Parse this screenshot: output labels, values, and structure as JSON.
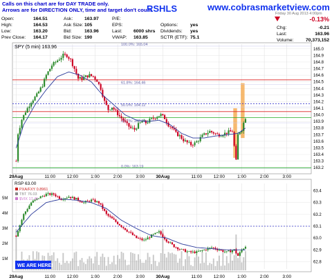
{
  "banner": {
    "ticker_partial": "RSHLS",
    "site": "www.cobrasmarketview.com",
    "note_line1": "Calls on this chart are for DAY TRADE only.",
    "note_line2": "Arrows are for DIRECTION ONLY, time and target don't count."
  },
  "quote": {
    "rows": [
      [
        {
          "label": "Open:",
          "value": "164.51"
        },
        {
          "label": "Ask:",
          "value": "163.97"
        },
        {
          "label": "P/E:",
          "value": ""
        }
      ],
      [
        {
          "label": "High:",
          "value": "164.53"
        },
        {
          "label": "Ask Size:",
          "value": "105"
        },
        {
          "label": "EPS:",
          "value": ""
        },
        {
          "label": "Options:",
          "value": "yes"
        }
      ],
      [
        {
          "label": "Low:",
          "value": "163.20"
        },
        {
          "label": "Bid:",
          "value": "163.96"
        },
        {
          "label": "Last:",
          "value": "6000 shrs"
        },
        {
          "label": "Dividends:",
          "value": "yes"
        }
      ],
      [
        {
          "label": "Prev Close:",
          "value": "164.17"
        },
        {
          "label": "Bid Size:",
          "value": "190"
        },
        {
          "label": "VWAP:",
          "value": "163.85"
        },
        {
          "label": "SCTR (ETF):",
          "value": "75.1"
        }
      ]
    ],
    "change_pct": "-0.13%",
    "chg_label": "Chg:",
    "chg_value": "-0.21",
    "last_label": "Last:",
    "last_value": "163.96",
    "volume_label": "Volume:",
    "volume_value": "70,373,152",
    "header_date": "Friday 30 Aug 2013 4:00pm"
  },
  "colors": {
    "up": "#2c8a2c",
    "down": "#cc0022",
    "ma": "#2a3a9a",
    "box": "#f4a340",
    "red_line": "#dd2222",
    "green_line": "#22aa22",
    "blue_dash": "#3333cc",
    "volume": "#9a9a9a",
    "banner_blue": "#1133ee",
    "note_blue": "#0000cc"
  },
  "chart_data": [
    {
      "type": "candlestick",
      "title": "SPY (5 min) 163.96",
      "y_ticks": [
        163.2,
        163.3,
        163.4,
        163.5,
        163.6,
        163.7,
        163.8,
        163.9,
        164.0,
        164.1,
        164.2,
        164.3,
        164.4,
        164.5,
        164.6,
        164.7,
        164.8,
        164.9,
        165.0
      ],
      "ylim": [
        163.15,
        165.05
      ],
      "x_ticks": [
        "29Aug",
        "11:00",
        "12:00",
        "1:00",
        "2:00",
        "3:00",
        "30Aug",
        "11:00",
        "12:00",
        "1:00",
        "2:00",
        "3:00"
      ],
      "x_tick_bars": [
        0,
        18,
        30,
        42,
        54,
        66,
        78,
        96,
        108,
        120,
        132,
        144
      ],
      "bar_count": 156,
      "close_path": [
        [
          0,
          163.3
        ],
        [
          1,
          163.72
        ],
        [
          3,
          163.93
        ],
        [
          5,
          164.05
        ],
        [
          8,
          164.2
        ],
        [
          11,
          164.3
        ],
        [
          14,
          164.45
        ],
        [
          16,
          164.6
        ],
        [
          19,
          164.75
        ],
        [
          21,
          164.8
        ],
        [
          23,
          164.85
        ],
        [
          25,
          164.9
        ],
        [
          27,
          164.9
        ],
        [
          29,
          164.83
        ],
        [
          31,
          164.7
        ],
        [
          33,
          164.55
        ],
        [
          35,
          164.55
        ],
        [
          37,
          164.58
        ],
        [
          39,
          164.6
        ],
        [
          41,
          164.58
        ],
        [
          43,
          164.52
        ],
        [
          45,
          164.4
        ],
        [
          47,
          164.2
        ],
        [
          49,
          164.08
        ],
        [
          51,
          164.12
        ],
        [
          53,
          164.05
        ],
        [
          55,
          163.98
        ],
        [
          57,
          163.92
        ],
        [
          59,
          163.85
        ],
        [
          61,
          163.8
        ],
        [
          63,
          163.78
        ],
        [
          65,
          163.85
        ],
        [
          67,
          163.9
        ],
        [
          69,
          163.88
        ],
        [
          71,
          163.92
        ],
        [
          73,
          163.95
        ],
        [
          75,
          163.98
        ],
        [
          77,
          164.0
        ],
        [
          79,
          163.95
        ],
        [
          81,
          163.85
        ],
        [
          83,
          163.8
        ],
        [
          85,
          163.72
        ],
        [
          87,
          163.68
        ],
        [
          89,
          163.62
        ],
        [
          91,
          163.58
        ],
        [
          93,
          163.55
        ],
        [
          95,
          163.57
        ],
        [
          97,
          163.62
        ],
        [
          99,
          163.68
        ],
        [
          101,
          163.72
        ],
        [
          103,
          163.75
        ],
        [
          105,
          163.73
        ],
        [
          107,
          163.7
        ],
        [
          109,
          163.7
        ],
        [
          111,
          163.72
        ],
        [
          113,
          163.74
        ],
        [
          115,
          163.75
        ],
        [
          117,
          163.3
        ],
        [
          118,
          163.7
        ],
        [
          119,
          163.75
        ],
        [
          120,
          163.78
        ],
        [
          121,
          163.88
        ],
        [
          122,
          163.96
        ]
      ],
      "ma_path": [
        [
          0,
          163.5
        ],
        [
          4,
          163.85
        ],
        [
          10,
          164.15
        ],
        [
          16,
          164.38
        ],
        [
          22,
          164.58
        ],
        [
          28,
          164.65
        ],
        [
          34,
          164.6
        ],
        [
          40,
          164.5
        ],
        [
          46,
          164.3
        ],
        [
          52,
          164.15
        ],
        [
          58,
          164.0
        ],
        [
          64,
          163.92
        ],
        [
          70,
          163.9
        ],
        [
          76,
          163.92
        ],
        [
          82,
          163.85
        ],
        [
          88,
          163.72
        ],
        [
          94,
          163.65
        ],
        [
          100,
          163.65
        ],
        [
          106,
          163.68
        ],
        [
          112,
          163.7
        ],
        [
          118,
          163.72
        ],
        [
          122,
          163.8
        ]
      ],
      "horizontal_lines": [
        {
          "label": "",
          "value": 164.53,
          "color": "red"
        },
        {
          "label": "",
          "value": 164.05,
          "color": "red"
        },
        {
          "label": "",
          "value": 164.17,
          "color": "blue-dashed"
        },
        {
          "label": "",
          "value": 163.96,
          "color": "green"
        },
        {
          "label": "",
          "value": 163.2,
          "color": "green"
        }
      ],
      "fib_levels": [
        {
          "label": "100.0%: 165.04",
          "value": 165.04
        },
        {
          "label": "61.8%: 164.46",
          "value": 164.46
        },
        {
          "label": "50.0%: 164.12",
          "value": 164.12
        },
        {
          "label": "38.2%: 163.88",
          "value": 163.88
        },
        {
          "label": "0.0%: 163.19",
          "value": 163.19
        }
      ],
      "highlight_boxes": [
        {
          "bar_from": 116,
          "bar_to": 117,
          "low": 163.35,
          "high": 164.1
        },
        {
          "bar_from": 120,
          "bar_to": 121,
          "low": 163.65,
          "high": 164.48
        }
      ]
    },
    {
      "type": "bar",
      "title": "RSP 63.00",
      "legend": [
        "PXA/FXY 0.8961",
        "TBT 76.03",
        "$VIX 17.45"
      ],
      "y_ticks": [
        62.8,
        62.9,
        63.0,
        63.1,
        63.2,
        63.3,
        63.4
      ],
      "ylim": [
        62.75,
        63.45
      ],
      "volume_ticks": [
        "1M",
        "2M",
        "3M",
        "4M",
        "5M"
      ],
      "close_path": [
        [
          0,
          63.02
        ],
        [
          4,
          63.2
        ],
        [
          8,
          63.3
        ],
        [
          12,
          63.34
        ],
        [
          16,
          63.37
        ],
        [
          20,
          63.37
        ],
        [
          24,
          63.33
        ],
        [
          28,
          63.35
        ],
        [
          32,
          63.33
        ],
        [
          36,
          63.3
        ],
        [
          40,
          63.32
        ],
        [
          44,
          63.3
        ],
        [
          48,
          63.2
        ],
        [
          52,
          63.15
        ],
        [
          56,
          63.1
        ],
        [
          60,
          63.05
        ],
        [
          64,
          63.0
        ],
        [
          68,
          62.98
        ],
        [
          72,
          63.02
        ],
        [
          76,
          63.05
        ],
        [
          80,
          62.98
        ],
        [
          84,
          62.93
        ],
        [
          88,
          62.9
        ],
        [
          92,
          62.88
        ],
        [
          96,
          62.88
        ],
        [
          100,
          62.9
        ],
        [
          104,
          62.92
        ],
        [
          108,
          62.9
        ],
        [
          112,
          62.88
        ],
        [
          116,
          62.9
        ],
        [
          118,
          62.85
        ],
        [
          120,
          62.9
        ],
        [
          122,
          62.93
        ]
      ],
      "ma_path": [
        [
          0,
          63.05
        ],
        [
          8,
          63.2
        ],
        [
          16,
          63.3
        ],
        [
          24,
          63.33
        ],
        [
          32,
          63.32
        ],
        [
          40,
          63.3
        ],
        [
          48,
          63.25
        ],
        [
          56,
          63.15
        ],
        [
          64,
          63.08
        ],
        [
          72,
          63.02
        ],
        [
          80,
          63.0
        ],
        [
          88,
          62.95
        ],
        [
          96,
          62.92
        ],
        [
          104,
          62.91
        ],
        [
          112,
          62.9
        ],
        [
          122,
          62.9
        ]
      ],
      "horizontal_lines": [
        {
          "label": "",
          "value": 63.1,
          "color": "blue-dashed"
        }
      ],
      "annotation": "WE ARE HERE!"
    }
  ]
}
